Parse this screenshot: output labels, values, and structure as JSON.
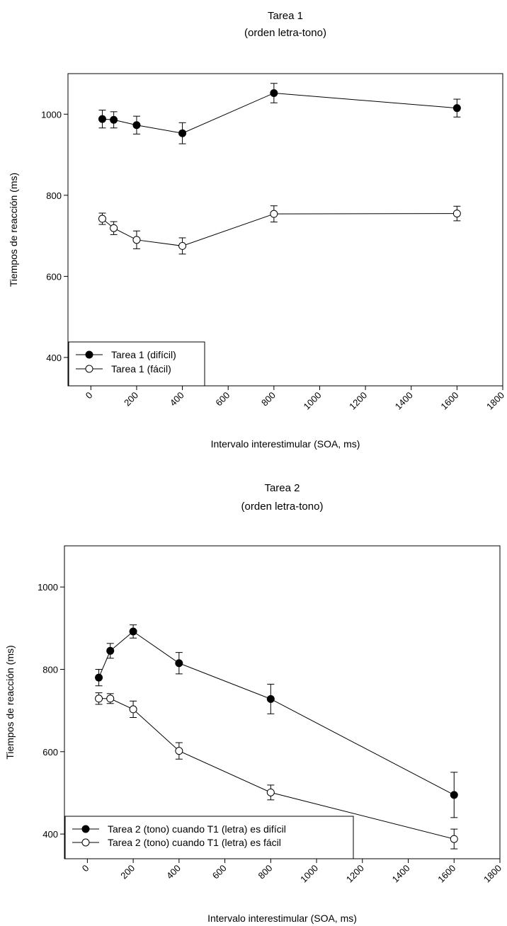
{
  "chart_data": [
    {
      "type": "line",
      "title": "Tarea 1",
      "subtitle": "(orden letra-tono)",
      "xlabel": "Intervalo interestimular (SOA, ms)",
      "ylabel": "Tiempos de reacción (ms)",
      "xlim": [
        -100,
        1800
      ],
      "ylim": [
        330,
        1100
      ],
      "xticks": [
        0,
        200,
        400,
        600,
        800,
        1000,
        1200,
        1400,
        1600,
        1800
      ],
      "yticks": [
        400,
        600,
        800,
        1000
      ],
      "grid": false,
      "legend_position": "bottom-left",
      "series": [
        {
          "name": "Tarea 1 (difícil)",
          "marker": "filled",
          "x": [
            50,
            100,
            200,
            400,
            800,
            1600
          ],
          "y": [
            988,
            986,
            973,
            953,
            1052,
            1015
          ],
          "err": [
            22,
            20,
            22,
            26,
            24,
            22
          ]
        },
        {
          "name": "Tarea 1 (fácil)",
          "marker": "open",
          "x": [
            50,
            100,
            200,
            400,
            800,
            1600
          ],
          "y": [
            742,
            719,
            690,
            675,
            754,
            755
          ],
          "err": [
            14,
            16,
            22,
            20,
            20,
            18
          ]
        }
      ]
    },
    {
      "type": "line",
      "title": "Tarea 2",
      "subtitle": "(orden letra-tono)",
      "xlabel": "Intervalo interestimular (SOA, ms)",
      "ylabel": "Tiempos de reacción (ms)",
      "xlim": [
        -100,
        1800
      ],
      "ylim": [
        340,
        1100
      ],
      "xticks": [
        0,
        200,
        400,
        600,
        800,
        1000,
        1200,
        1400,
        1600,
        1800
      ],
      "yticks": [
        400,
        600,
        800,
        1000
      ],
      "grid": false,
      "legend_position": "bottom-left",
      "series": [
        {
          "name": "Tarea 2 (tono) cuando T1 (letra) es difícil",
          "marker": "filled",
          "x": [
            50,
            100,
            200,
            400,
            800,
            1600
          ],
          "y": [
            780,
            845,
            892,
            815,
            728,
            495
          ],
          "err": [
            20,
            18,
            16,
            26,
            36,
            55
          ]
        },
        {
          "name": "Tarea 2 (tono) cuando T1 (letra) es fácil",
          "marker": "open",
          "x": [
            50,
            100,
            200,
            400,
            800,
            1600
          ],
          "y": [
            729,
            729,
            703,
            602,
            501,
            388
          ],
          "err": [
            14,
            12,
            20,
            20,
            18,
            24
          ]
        }
      ]
    }
  ]
}
